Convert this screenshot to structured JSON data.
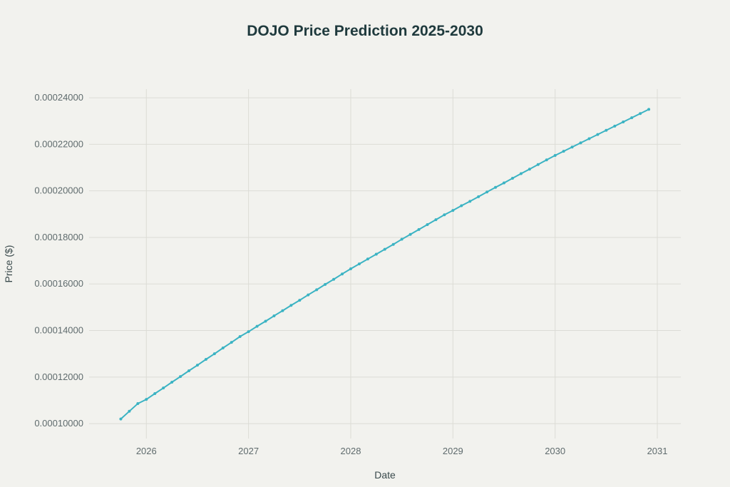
{
  "chart_data": {
    "type": "line",
    "title": "DOJO Price Prediction 2025-2030",
    "xlabel": "Date",
    "ylabel": "Price ($)",
    "xlim": [
      2025.44,
      2031.23
    ],
    "ylim": [
      9.36e-05,
      0.0002437
    ],
    "grid": true,
    "legend": "none",
    "x_ticks": [
      "2026",
      "2027",
      "2028",
      "2029",
      "2030",
      "2031"
    ],
    "y_ticks": [
      "0.00010000",
      "0.00012000",
      "0.00014000",
      "0.00016000",
      "0.00018000",
      "0.00020000",
      "0.00022000",
      "0.00024000"
    ],
    "series": [
      {
        "name": "DOJO price",
        "color": "#3bb3c3",
        "x": [
          "2025-10",
          "2025-11",
          "2025-12",
          "2026-01",
          "2026-02",
          "2026-03",
          "2026-04",
          "2026-05",
          "2026-06",
          "2026-07",
          "2026-08",
          "2026-09",
          "2026-10",
          "2026-11",
          "2026-12",
          "2027-01",
          "2027-02",
          "2027-03",
          "2027-04",
          "2027-05",
          "2027-06",
          "2027-07",
          "2027-08",
          "2027-09",
          "2027-10",
          "2027-11",
          "2027-12",
          "2028-01",
          "2028-02",
          "2028-03",
          "2028-04",
          "2028-05",
          "2028-06",
          "2028-07",
          "2028-08",
          "2028-09",
          "2028-10",
          "2028-11",
          "2028-12",
          "2029-01",
          "2029-02",
          "2029-03",
          "2029-04",
          "2029-05",
          "2029-06",
          "2029-07",
          "2029-08",
          "2029-09",
          "2029-10",
          "2029-11",
          "2029-12",
          "2030-01",
          "2030-02",
          "2030-03",
          "2030-04",
          "2030-05",
          "2030-06",
          "2030-07",
          "2030-08",
          "2030-09",
          "2030-10",
          "2030-11",
          "2030-12"
        ],
        "values": [
          0.000102,
          0.0001053,
          0.0001086,
          0.0001104,
          0.0001129,
          0.0001153,
          0.0001178,
          0.0001202,
          0.0001227,
          0.0001251,
          0.0001276,
          0.00013,
          0.0001325,
          0.0001349,
          0.0001374,
          0.0001395,
          0.0001418,
          0.000144,
          0.0001463,
          0.0001485,
          0.0001508,
          0.000153,
          0.0001553,
          0.0001575,
          0.0001598,
          0.000162,
          0.0001643,
          0.0001665,
          0.0001686,
          0.0001707,
          0.0001728,
          0.0001749,
          0.000177,
          0.0001792,
          0.0001813,
          0.0001834,
          0.0001855,
          0.0001876,
          0.0001897,
          0.0001916,
          0.0001936,
          0.0001955,
          0.0001975,
          0.0001995,
          0.0002015,
          0.0002034,
          0.0002054,
          0.0002074,
          0.0002093,
          0.0002113,
          0.0002133,
          0.0002152,
          0.000217,
          0.0002188,
          0.0002206,
          0.0002224,
          0.0002242,
          0.000226,
          0.0002278,
          0.0002296,
          0.0002314,
          0.0002332,
          0.000235
        ]
      }
    ]
  }
}
